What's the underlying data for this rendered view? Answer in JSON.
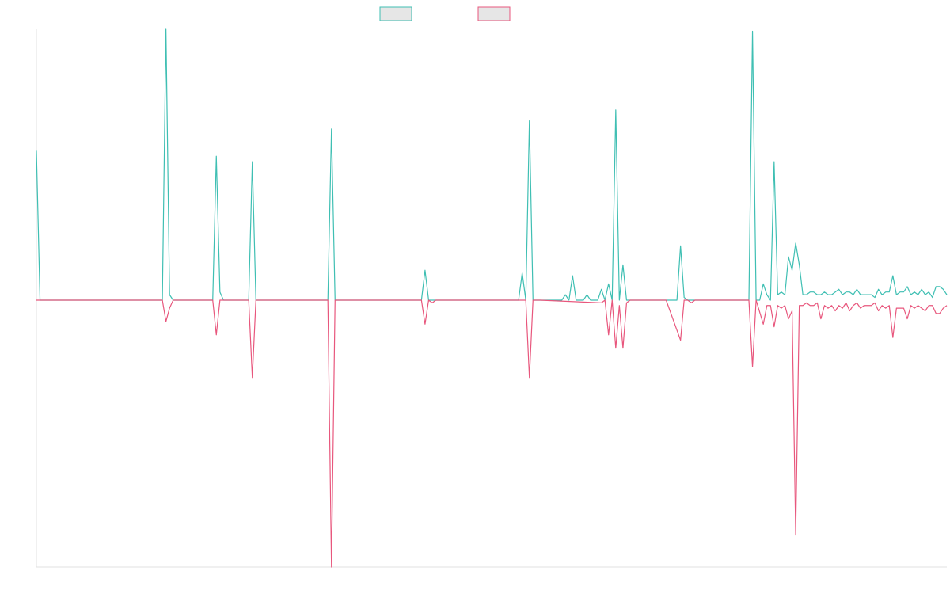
{
  "chart_data": {
    "type": "line",
    "title": "",
    "xlabel": "",
    "ylabel": "",
    "grid": false,
    "legend_position": "top-center",
    "colors": {
      "series_a": "#3fbfb3",
      "series_b": "#e8577d",
      "legend_fill": "#e6e6e6",
      "axis": "#e0e0e0"
    },
    "ylim": [
      -100,
      100
    ],
    "series": [
      {
        "name": "",
        "color": "#3fbfb3",
        "points": [
          [
            0,
            55
          ],
          [
            1,
            0
          ],
          [
            2,
            0
          ],
          [
            34,
            0
          ],
          [
            35,
            0
          ],
          [
            36,
            100
          ],
          [
            37,
            2
          ],
          [
            38,
            0
          ],
          [
            49,
            0
          ],
          [
            50,
            53
          ],
          [
            51,
            3
          ],
          [
            52,
            0
          ],
          [
            59,
            0
          ],
          [
            60,
            51
          ],
          [
            61,
            0
          ],
          [
            81,
            0
          ],
          [
            82,
            63
          ],
          [
            83,
            0
          ],
          [
            107,
            0
          ],
          [
            108,
            11
          ],
          [
            109,
            0
          ],
          [
            110,
            0
          ],
          [
            111,
            0
          ],
          [
            134,
            0
          ],
          [
            135,
            10
          ],
          [
            136,
            0
          ],
          [
            137,
            66
          ],
          [
            138,
            0
          ],
          [
            139,
            0
          ],
          [
            140,
            0
          ],
          [
            141,
            0
          ],
          [
            146,
            0
          ],
          [
            147,
            2
          ],
          [
            148,
            0
          ],
          [
            149,
            9
          ],
          [
            150,
            0
          ],
          [
            151,
            0
          ],
          [
            152,
            0
          ],
          [
            153,
            2
          ],
          [
            154,
            0
          ],
          [
            155,
            0
          ],
          [
            156,
            0
          ],
          [
            157,
            4
          ],
          [
            158,
            0
          ],
          [
            159,
            6
          ],
          [
            160,
            0
          ],
          [
            161,
            70
          ],
          [
            162,
            0
          ],
          [
            163,
            13
          ],
          [
            164,
            0
          ],
          [
            165,
            0
          ],
          [
            175,
            0
          ],
          [
            176,
            0
          ],
          [
            177,
            0
          ],
          [
            178,
            0
          ],
          [
            179,
            20
          ],
          [
            180,
            1
          ],
          [
            181,
            0
          ],
          [
            182,
            0
          ],
          [
            195,
            0
          ],
          [
            196,
            0
          ],
          [
            197,
            0
          ],
          [
            198,
            0
          ],
          [
            199,
            99
          ],
          [
            200,
            0
          ],
          [
            201,
            0
          ],
          [
            202,
            6
          ],
          [
            203,
            2
          ],
          [
            204,
            0
          ],
          [
            205,
            51
          ],
          [
            206,
            2
          ],
          [
            207,
            3
          ],
          [
            208,
            2
          ],
          [
            209,
            16
          ],
          [
            210,
            11
          ],
          [
            211,
            21
          ],
          [
            212,
            13
          ],
          [
            213,
            2
          ],
          [
            214,
            2
          ],
          [
            215,
            3
          ],
          [
            216,
            3
          ],
          [
            217,
            2
          ],
          [
            218,
            2
          ],
          [
            219,
            3
          ],
          [
            220,
            2
          ],
          [
            221,
            2
          ],
          [
            222,
            3
          ],
          [
            223,
            4
          ],
          [
            224,
            2
          ],
          [
            225,
            3
          ],
          [
            226,
            3
          ],
          [
            227,
            2
          ],
          [
            228,
            4
          ],
          [
            229,
            2
          ],
          [
            230,
            2
          ],
          [
            231,
            2
          ],
          [
            232,
            2
          ],
          [
            233,
            1
          ],
          [
            234,
            4
          ],
          [
            235,
            2
          ],
          [
            236,
            3
          ],
          [
            237,
            3
          ],
          [
            238,
            9
          ],
          [
            239,
            2
          ],
          [
            240,
            3
          ],
          [
            241,
            3
          ],
          [
            242,
            5
          ],
          [
            243,
            2
          ],
          [
            244,
            3
          ],
          [
            245,
            2
          ],
          [
            246,
            4
          ],
          [
            247,
            2
          ],
          [
            248,
            3
          ],
          [
            249,
            1
          ],
          [
            250,
            5
          ],
          [
            251,
            5
          ],
          [
            252,
            4
          ],
          [
            253,
            2
          ]
        ]
      },
      {
        "name": "",
        "color": "#e8577d",
        "points": [
          [
            0,
            0
          ],
          [
            35,
            0
          ],
          [
            36,
            -8
          ],
          [
            37,
            -3
          ],
          [
            38,
            0
          ],
          [
            49,
            0
          ],
          [
            50,
            -13
          ],
          [
            51,
            0
          ],
          [
            52,
            0
          ],
          [
            59,
            0
          ],
          [
            60,
            -29
          ],
          [
            61,
            0
          ],
          [
            81,
            0
          ],
          [
            82,
            -100
          ],
          [
            83,
            0
          ],
          [
            107,
            0
          ],
          [
            108,
            -9
          ],
          [
            109,
            0
          ],
          [
            110,
            -1
          ],
          [
            111,
            0
          ],
          [
            134,
            0
          ],
          [
            135,
            0
          ],
          [
            136,
            0
          ],
          [
            137,
            -29
          ],
          [
            138,
            0
          ],
          [
            139,
            0
          ],
          [
            140,
            0
          ],
          [
            157,
            -1
          ],
          [
            158,
            0
          ],
          [
            159,
            -13
          ],
          [
            160,
            0
          ],
          [
            161,
            -18
          ],
          [
            162,
            -2
          ],
          [
            163,
            -18
          ],
          [
            164,
            -1
          ],
          [
            165,
            0
          ],
          [
            175,
            0
          ],
          [
            179,
            -15
          ],
          [
            180,
            0
          ],
          [
            181,
            0
          ],
          [
            182,
            -1
          ],
          [
            183,
            0
          ],
          [
            198,
            0
          ],
          [
            199,
            -25
          ],
          [
            200,
            0
          ],
          [
            202,
            -9
          ],
          [
            203,
            -2
          ],
          [
            204,
            -2
          ],
          [
            205,
            -10
          ],
          [
            206,
            -2
          ],
          [
            207,
            -3
          ],
          [
            208,
            -2
          ],
          [
            209,
            -7
          ],
          [
            210,
            -4
          ],
          [
            211,
            -88
          ],
          [
            212,
            -2
          ],
          [
            213,
            -2
          ],
          [
            214,
            -1
          ],
          [
            215,
            -2
          ],
          [
            216,
            -2
          ],
          [
            217,
            -1
          ],
          [
            218,
            -7
          ],
          [
            219,
            -2
          ],
          [
            220,
            -3
          ],
          [
            221,
            -2
          ],
          [
            222,
            -4
          ],
          [
            223,
            -2
          ],
          [
            224,
            -3
          ],
          [
            225,
            -1
          ],
          [
            226,
            -4
          ],
          [
            227,
            -2
          ],
          [
            228,
            -1
          ],
          [
            229,
            -3
          ],
          [
            230,
            -2
          ],
          [
            231,
            -2
          ],
          [
            232,
            -2
          ],
          [
            233,
            -1
          ],
          [
            234,
            -4
          ],
          [
            235,
            -2
          ],
          [
            236,
            -3
          ],
          [
            237,
            -2
          ],
          [
            238,
            -14
          ],
          [
            239,
            -3
          ],
          [
            240,
            -3
          ],
          [
            241,
            -3
          ],
          [
            242,
            -7
          ],
          [
            243,
            -2
          ],
          [
            244,
            -3
          ],
          [
            245,
            -2
          ],
          [
            246,
            -3
          ],
          [
            247,
            -4
          ],
          [
            248,
            -2
          ],
          [
            249,
            -2
          ],
          [
            250,
            -5
          ],
          [
            251,
            -5
          ],
          [
            252,
            -3
          ],
          [
            253,
            -2
          ]
        ]
      }
    ]
  }
}
